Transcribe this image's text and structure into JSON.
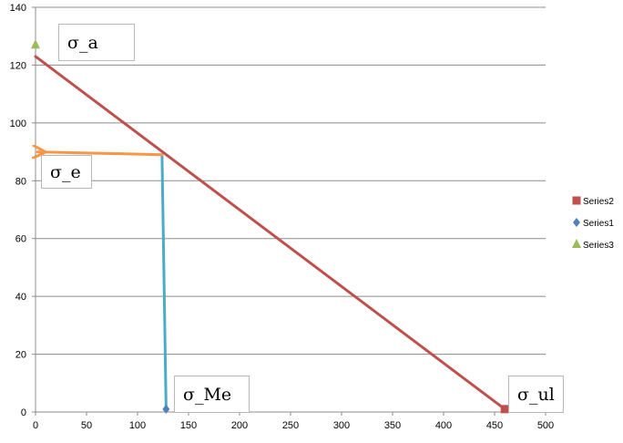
{
  "chart_data": {
    "type": "scatter",
    "xlim": [
      0,
      500
    ],
    "ylim": [
      0,
      140
    ],
    "x_ticks": [
      "0",
      "50",
      "100",
      "150",
      "200",
      "250",
      "300",
      "350",
      "400",
      "450",
      "500"
    ],
    "y_ticks": [
      "0",
      "20",
      "40",
      "60",
      "80",
      "100",
      "120",
      "140"
    ],
    "grid": true,
    "legend_position": "right",
    "series": [
      {
        "name": "Series2",
        "color": "#C0504D",
        "marker": "square",
        "points": [
          {
            "x": 460,
            "y": 1
          }
        ]
      },
      {
        "name": "Series1",
        "color": "#4F81BD",
        "marker": "diamond",
        "points": [
          {
            "x": 128,
            "y": 1
          }
        ]
      },
      {
        "name": "Series3",
        "color": "#9BBB59",
        "marker": "triangle",
        "points": [
          {
            "x": 0,
            "y": 127
          }
        ]
      }
    ],
    "lines": [
      {
        "role": "failure-line",
        "color": "#C0504D",
        "from": {
          "x": 0,
          "y": 123
        },
        "to": {
          "x": 460,
          "y": 1
        }
      },
      {
        "role": "vertical-drop",
        "color": "#4BACC6",
        "from": {
          "x": 124,
          "y": 89
        },
        "to": {
          "x": 128,
          "y": 1
        }
      },
      {
        "role": "horizontal-arrow",
        "color": "#F79646",
        "from": {
          "x": 124,
          "y": 89
        },
        "to": {
          "x": 2,
          "y": 90
        }
      }
    ],
    "annotations": [
      {
        "key": "sigma_a",
        "text": "σ_a"
      },
      {
        "key": "sigma_e",
        "text": "σ_e"
      },
      {
        "key": "sigma_me",
        "text": "σ_Me"
      },
      {
        "key": "sigma_ul",
        "text": "σ_ul"
      }
    ]
  }
}
